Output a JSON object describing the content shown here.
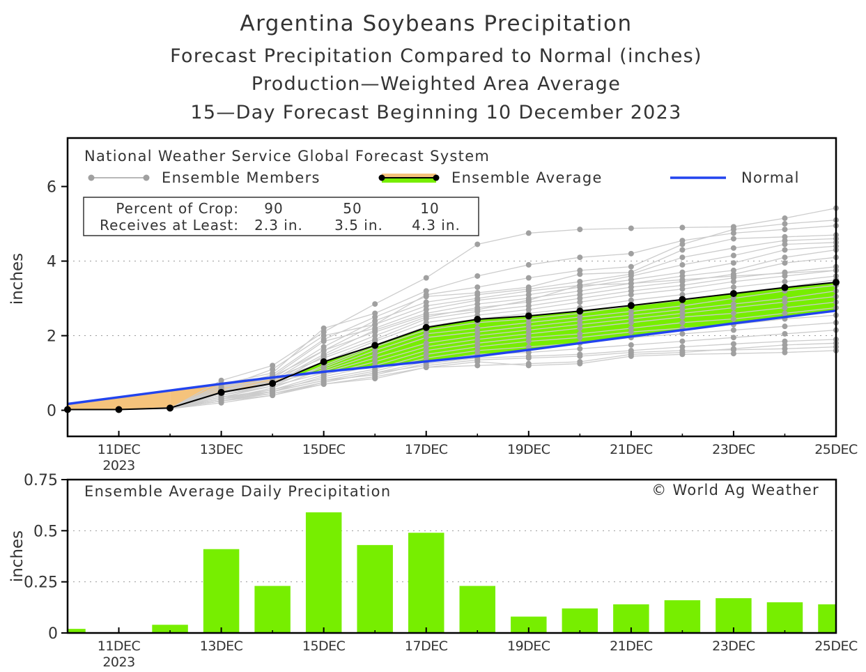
{
  "titles": [
    "Argentina Soybeans Precipitation",
    "Forecast Precipitation Compared to Normal (inches)",
    "Production—Weighted Area Average",
    "15—Day Forecast Beginning 10 December 2023"
  ],
  "colors": {
    "member": "#a0a0a0",
    "member_line": "#cccccc",
    "above_normal": "#77ee00",
    "below_normal": "#f5c37c",
    "normal": "#2244ee",
    "average": "#000000",
    "bar": "#77ee00",
    "grid": "#999999"
  },
  "chart_data": [
    {
      "type": "line",
      "model_label": "National Weather Service Global Forecast System",
      "legend": {
        "members": "Ensemble Members",
        "average": "Ensemble Average",
        "normal": "Normal"
      },
      "crop_box": {
        "row1": [
          "Percent of Crop:",
          "90",
          "50",
          "10"
        ],
        "row2": [
          "Receives at Least:",
          "2.3 in.",
          "3.5 in.",
          "4.3 in."
        ]
      },
      "ylabel": "inches",
      "ylim": [
        -0.7,
        7.3
      ],
      "yticks": [
        0,
        2,
        4,
        6
      ],
      "grid_y": [
        2,
        4
      ],
      "x": [
        10,
        11,
        12,
        13,
        14,
        15,
        16,
        17,
        18,
        19,
        20,
        21,
        22,
        23,
        24,
        25
      ],
      "xlim": [
        10,
        25
      ],
      "xticks": [
        {
          "x": 11,
          "label": "11DEC",
          "year": "2023"
        },
        {
          "x": 13,
          "label": "13DEC"
        },
        {
          "x": 15,
          "label": "15DEC"
        },
        {
          "x": 17,
          "label": "17DEC"
        },
        {
          "x": 19,
          "label": "19DEC"
        },
        {
          "x": 21,
          "label": "21DEC"
        },
        {
          "x": 23,
          "label": "23DEC"
        },
        {
          "x": 25,
          "label": "25DEC"
        }
      ],
      "ensemble_average": [
        0.02,
        0.02,
        0.06,
        0.48,
        0.72,
        1.3,
        1.74,
        2.22,
        2.44,
        2.53,
        2.66,
        2.81,
        2.97,
        3.13,
        3.29,
        3.43
      ],
      "normal": [
        0.17,
        0.35,
        0.53,
        0.71,
        0.88,
        1.03,
        1.17,
        1.31,
        1.45,
        1.62,
        1.8,
        1.98,
        2.15,
        2.33,
        2.5,
        2.67
      ],
      "members": [
        [
          0.02,
          0.02,
          0.05,
          0.8,
          1.2,
          2.1,
          2.85,
          3.55,
          4.45,
          4.75,
          4.85,
          4.88,
          4.9,
          4.92,
          5.15,
          5.42
        ],
        [
          0.02,
          0.02,
          0.06,
          0.7,
          1.0,
          2.2,
          2.6,
          3.2,
          3.6,
          3.9,
          4.1,
          4.2,
          4.55,
          4.75,
          4.85,
          4.95
        ],
        [
          0.02,
          0.02,
          0.06,
          0.6,
          0.95,
          1.9,
          2.5,
          3.05,
          3.15,
          3.3,
          3.65,
          3.7,
          4.3,
          4.6,
          4.65,
          4.7
        ],
        [
          0.02,
          0.02,
          0.05,
          0.55,
          0.85,
          1.7,
          2.4,
          2.9,
          3.1,
          3.25,
          3.45,
          3.65,
          4.1,
          4.35,
          4.55,
          4.6
        ],
        [
          0.02,
          0.02,
          0.07,
          0.5,
          0.8,
          1.6,
          2.3,
          2.8,
          3.0,
          3.2,
          3.35,
          3.6,
          3.9,
          4.15,
          4.45,
          4.5
        ],
        [
          0.02,
          0.02,
          0.06,
          0.65,
          0.9,
          1.85,
          2.2,
          2.7,
          2.95,
          3.1,
          3.3,
          3.5,
          3.7,
          3.95,
          4.3,
          4.4
        ],
        [
          0.02,
          0.02,
          0.05,
          0.45,
          0.75,
          1.5,
          2.15,
          2.6,
          2.85,
          3.0,
          3.2,
          3.4,
          3.6,
          3.75,
          4.1,
          4.3
        ],
        [
          0.02,
          0.02,
          0.06,
          0.4,
          0.7,
          1.45,
          2.0,
          2.5,
          2.75,
          2.9,
          3.1,
          3.3,
          3.45,
          3.65,
          3.95,
          4.1
        ],
        [
          0.02,
          0.02,
          0.07,
          0.6,
          0.85,
          1.4,
          1.9,
          2.45,
          2.65,
          2.8,
          3.0,
          3.2,
          3.35,
          3.55,
          3.7,
          3.85
        ],
        [
          0.02,
          0.02,
          0.06,
          0.5,
          0.8,
          1.3,
          1.85,
          2.35,
          2.55,
          2.7,
          2.9,
          3.1,
          3.25,
          3.45,
          3.6,
          3.75
        ],
        [
          0.02,
          0.02,
          0.05,
          0.35,
          0.65,
          1.2,
          1.75,
          2.25,
          2.45,
          2.6,
          2.75,
          2.95,
          3.1,
          3.3,
          3.45,
          3.6
        ],
        [
          0.02,
          0.02,
          0.06,
          0.45,
          0.7,
          1.15,
          1.7,
          2.15,
          2.35,
          2.45,
          2.6,
          2.8,
          2.95,
          3.15,
          3.3,
          3.5
        ],
        [
          0.02,
          0.02,
          0.05,
          0.3,
          0.6,
          1.1,
          1.6,
          2.05,
          2.2,
          2.35,
          2.5,
          2.65,
          2.8,
          3.0,
          3.2,
          3.35
        ],
        [
          0.02,
          0.02,
          0.06,
          0.55,
          0.75,
          1.05,
          1.5,
          1.95,
          2.1,
          2.25,
          2.4,
          2.55,
          2.7,
          2.85,
          3.0,
          3.2
        ],
        [
          0.02,
          0.02,
          0.07,
          0.4,
          0.65,
          1.0,
          1.4,
          1.8,
          2.0,
          2.15,
          2.3,
          2.45,
          2.6,
          2.75,
          2.9,
          3.05
        ],
        [
          0.02,
          0.02,
          0.06,
          0.3,
          0.55,
          0.95,
          1.3,
          1.7,
          1.9,
          2.05,
          2.2,
          2.35,
          2.5,
          2.6,
          2.75,
          2.9
        ],
        [
          0.02,
          0.02,
          0.05,
          0.25,
          0.5,
          0.9,
          1.2,
          1.6,
          1.8,
          1.95,
          2.05,
          2.2,
          2.35,
          2.45,
          2.6,
          2.75
        ],
        [
          0.02,
          0.02,
          0.06,
          0.35,
          0.55,
          0.85,
          1.1,
          1.5,
          1.7,
          1.85,
          1.95,
          2.1,
          2.2,
          2.3,
          2.45,
          2.55
        ],
        [
          0.02,
          0.02,
          0.05,
          0.3,
          0.5,
          0.8,
          1.05,
          1.4,
          1.6,
          1.7,
          1.8,
          1.95,
          2.05,
          2.15,
          2.25,
          2.35
        ],
        [
          0.02,
          0.02,
          0.04,
          0.25,
          0.45,
          0.75,
          1.0,
          1.3,
          1.5,
          1.55,
          1.65,
          1.75,
          1.85,
          1.95,
          2.05,
          2.15
        ],
        [
          0.02,
          0.02,
          0.06,
          0.35,
          0.5,
          0.8,
          0.95,
          1.25,
          1.4,
          1.45,
          1.5,
          1.6,
          1.7,
          1.78,
          1.85,
          1.9
        ],
        [
          0.02,
          0.02,
          0.05,
          0.3,
          0.45,
          0.7,
          0.9,
          1.15,
          1.2,
          1.25,
          1.3,
          1.5,
          1.55,
          1.65,
          1.75,
          1.8
        ],
        [
          0.02,
          0.02,
          0.04,
          0.2,
          0.4,
          0.7,
          0.85,
          1.15,
          1.3,
          1.2,
          1.25,
          1.45,
          1.5,
          1.52,
          1.55,
          1.6
        ],
        [
          0.02,
          0.02,
          0.05,
          0.25,
          0.4,
          0.75,
          1.0,
          1.2,
          1.35,
          1.4,
          1.45,
          1.55,
          1.6,
          1.62,
          1.65,
          1.7
        ],
        [
          0.02,
          0.02,
          0.06,
          0.5,
          0.9,
          1.6,
          2.1,
          2.55,
          2.7,
          2.95,
          3.35,
          3.4,
          3.5,
          3.6,
          3.68,
          3.75
        ],
        [
          0.02,
          0.02,
          0.05,
          0.6,
          1.1,
          2.0,
          2.3,
          3.1,
          3.3,
          3.55,
          3.75,
          3.85,
          4.45,
          4.85,
          5.0,
          5.1
        ]
      ]
    },
    {
      "type": "bar",
      "title": "Ensemble Average Daily Precipitation",
      "credit": "© World Ag Weather",
      "ylabel": "inches",
      "ylim": [
        0,
        0.75
      ],
      "yticks": [
        {
          "v": 0,
          "label": "0"
        },
        {
          "v": 0.25,
          "label": "0.25"
        },
        {
          "v": 0.5,
          "label": "0.5"
        },
        {
          "v": 0.75,
          "label": "0.75"
        }
      ],
      "grid_y": [
        0.25,
        0.5
      ],
      "x": [
        10,
        11,
        12,
        13,
        14,
        15,
        16,
        17,
        18,
        19,
        20,
        21,
        22,
        23,
        24,
        25
      ],
      "values": [
        0.02,
        0.0,
        0.04,
        0.41,
        0.23,
        0.59,
        0.43,
        0.49,
        0.23,
        0.08,
        0.12,
        0.14,
        0.16,
        0.17,
        0.15,
        0.14
      ]
    }
  ]
}
